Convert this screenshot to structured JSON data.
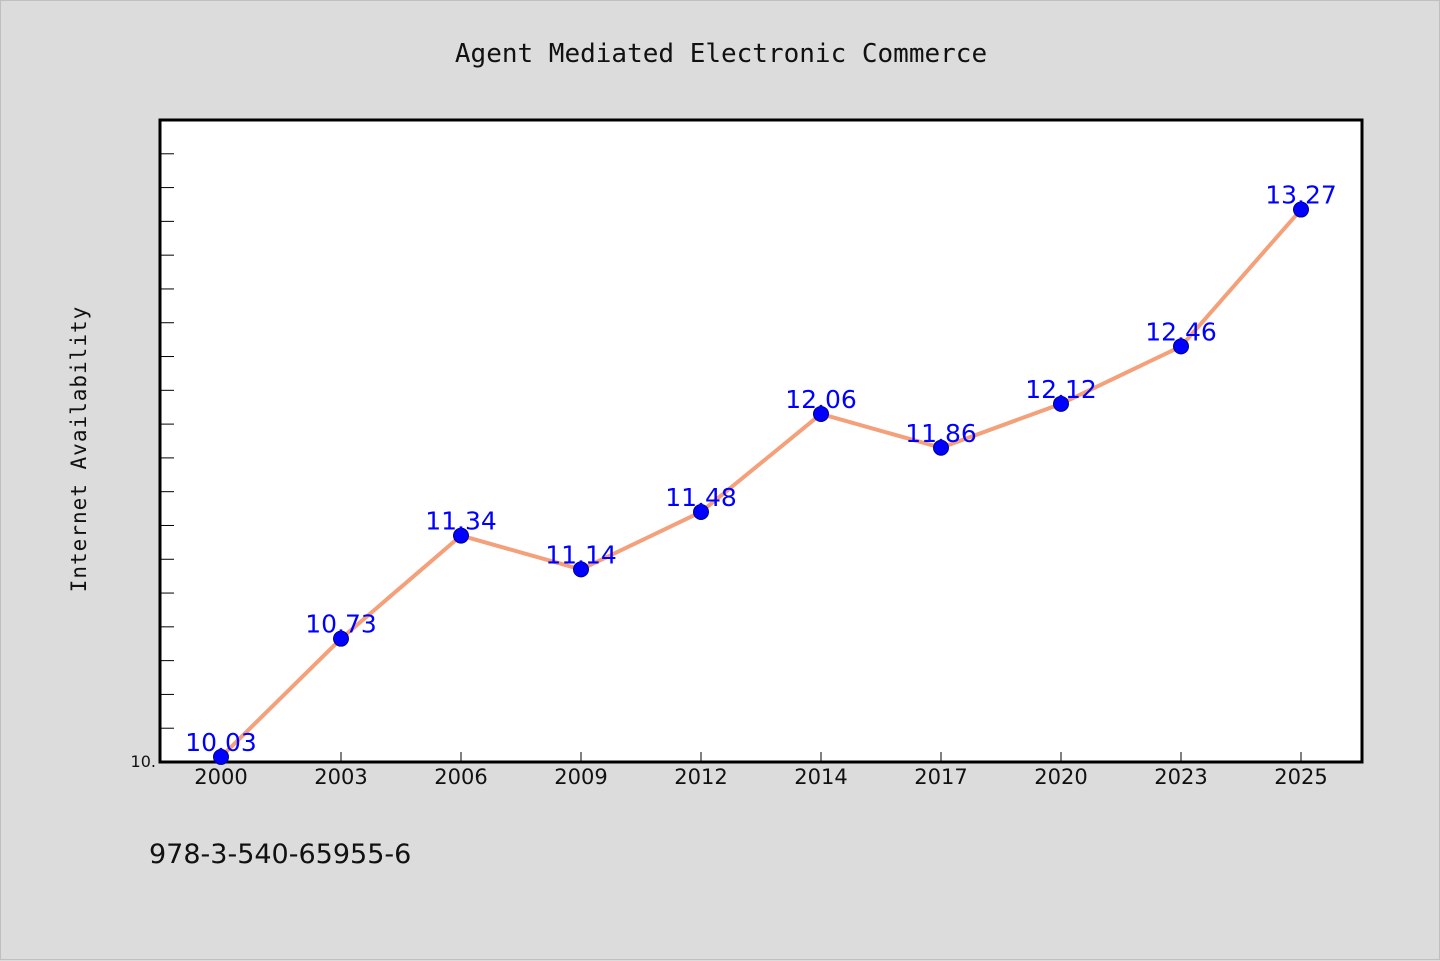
{
  "chart_data": {
    "type": "line",
    "title": "Agent Mediated Electronic Commerce",
    "xlabel": "",
    "ylabel": "Internet Availability",
    "x": [
      "2000",
      "2003",
      "2006",
      "2009",
      "2012",
      "2014",
      "2017",
      "2020",
      "2023",
      "2025"
    ],
    "series": [
      {
        "values": [
          10.03,
          10.73,
          11.34,
          11.14,
          11.48,
          12.06,
          11.86,
          12.12,
          12.46,
          13.27
        ],
        "labels": [
          "10.03",
          "10.73",
          "11.34",
          "11.14",
          "11.48",
          "12.06",
          "11.86",
          "12.12",
          "12.46",
          "13.27"
        ]
      }
    ],
    "ylim": [
      10.0,
      13.8
    ],
    "y_tick_labels": [
      "10."
    ],
    "grid": false,
    "line_color": "#f4a07a",
    "marker_color": "#0000ff",
    "label_color": "#0000ff"
  },
  "footer": {
    "isbn": "978-3-540-65955-6"
  }
}
